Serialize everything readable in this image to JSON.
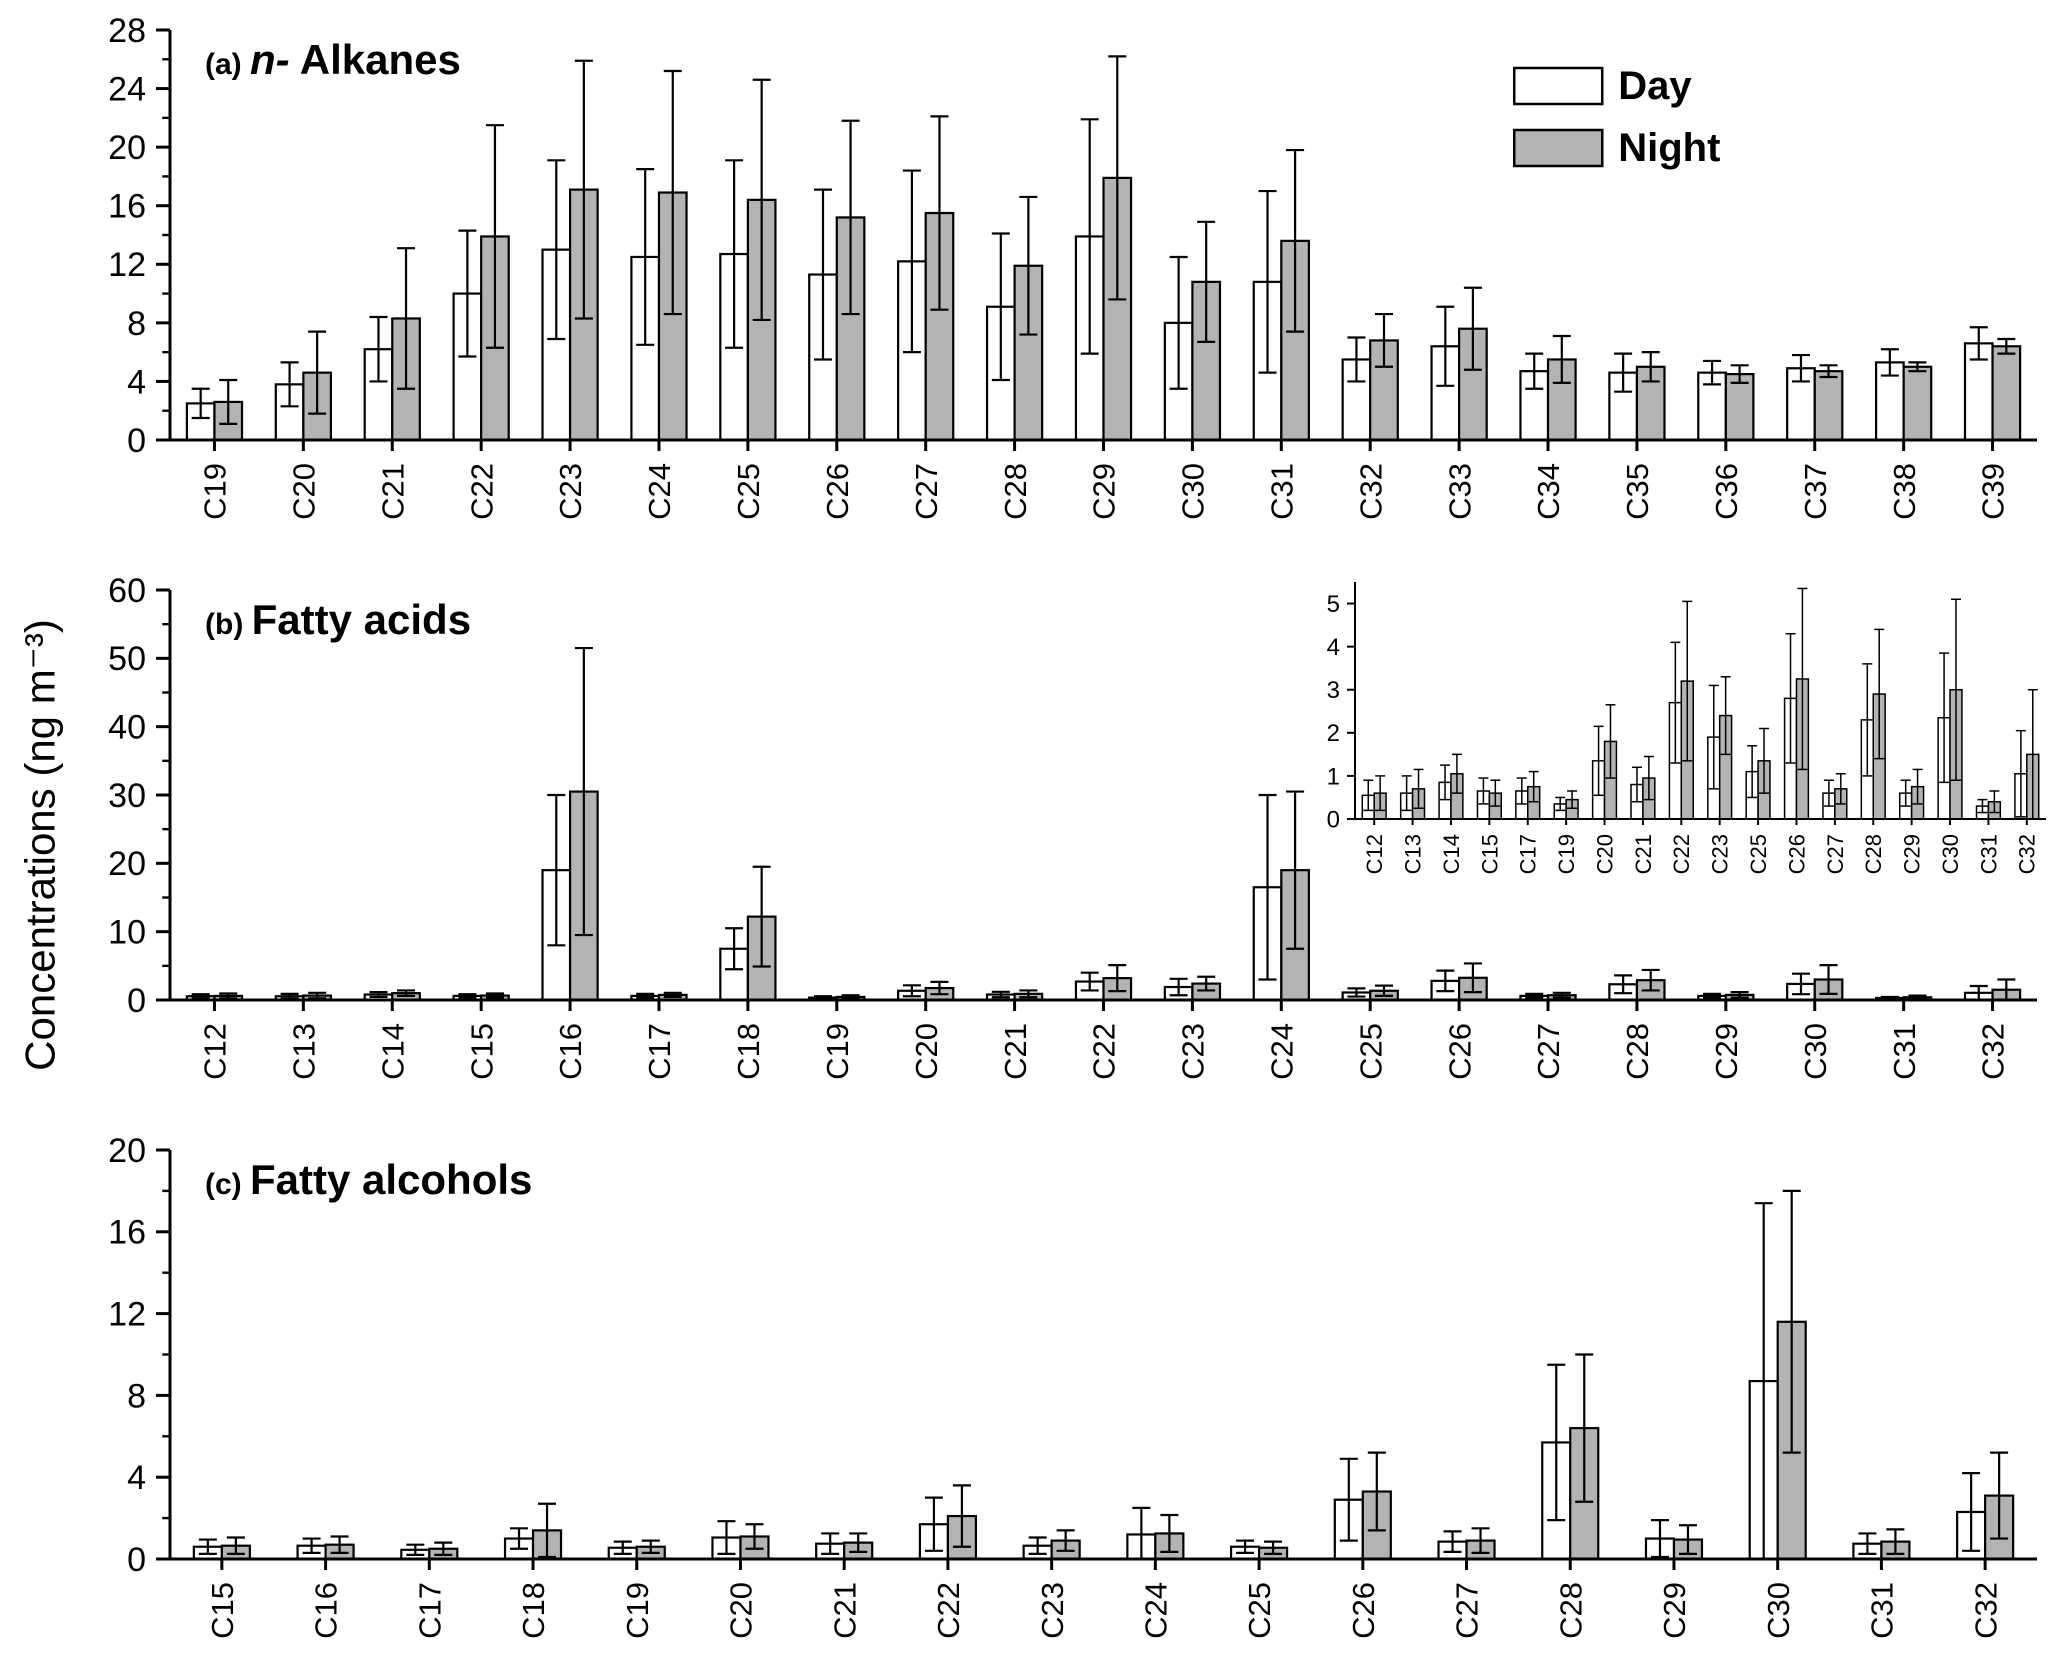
{
  "figure": {
    "y_axis_label": "Concentrations (ng m⁻³)",
    "legend": {
      "day": "Day",
      "night": "Night"
    },
    "colors": {
      "day_fill": "#ffffff",
      "night_fill": "#b3b3b3",
      "stroke": "#000000"
    }
  },
  "chart_data": [
    {
      "id": "alkanes",
      "type": "bar",
      "panel": "(a)",
      "title_italic": "n-",
      "title": " Alkanes",
      "xlabel": "",
      "ylabel": "Concentrations (ng m⁻³)",
      "ylim": [
        0,
        28
      ],
      "yticks": [
        0,
        4,
        8,
        12,
        16,
        20,
        24,
        28
      ],
      "legend": true,
      "legend_position": "upper right",
      "categories": [
        "C19",
        "C20",
        "C21",
        "C22",
        "C23",
        "C24",
        "C25",
        "C26",
        "C27",
        "C28",
        "C29",
        "C30",
        "C31",
        "C32",
        "C33",
        "C34",
        "C35",
        "C36",
        "C37",
        "C38",
        "C39"
      ],
      "series": [
        {
          "name": "Day",
          "values": [
            2.5,
            3.8,
            6.2,
            10.0,
            13.0,
            12.5,
            12.7,
            11.3,
            12.2,
            9.1,
            13.9,
            8.0,
            10.8,
            5.5,
            6.4,
            4.7,
            4.6,
            4.6,
            4.9,
            5.3,
            6.6
          ],
          "errors": [
            1.0,
            1.5,
            2.2,
            4.3,
            6.1,
            6.0,
            6.4,
            5.8,
            6.2,
            5.0,
            8.0,
            4.5,
            6.2,
            1.5,
            2.7,
            1.2,
            1.3,
            0.8,
            0.9,
            0.9,
            1.1
          ]
        },
        {
          "name": "Night",
          "values": [
            2.6,
            4.6,
            8.3,
            13.9,
            17.1,
            16.9,
            16.4,
            15.2,
            15.5,
            11.9,
            17.9,
            10.8,
            13.6,
            6.8,
            7.6,
            5.5,
            5.0,
            4.5,
            4.7,
            5.0,
            6.4
          ],
          "errors": [
            1.5,
            2.8,
            4.8,
            7.6,
            8.8,
            8.3,
            8.2,
            6.6,
            6.6,
            4.7,
            8.3,
            4.1,
            6.2,
            1.8,
            2.8,
            1.6,
            1.0,
            0.6,
            0.4,
            0.3,
            0.5
          ]
        }
      ]
    },
    {
      "id": "fatty-acids",
      "type": "bar",
      "panel": "(b)",
      "title_italic": "",
      "title": " Fatty acids",
      "xlabel": "",
      "ylabel": "Concentrations (ng m⁻³)",
      "ylim": [
        0,
        60
      ],
      "yticks": [
        0,
        10,
        20,
        30,
        40,
        50,
        60
      ],
      "legend": false,
      "categories": [
        "C12",
        "C13",
        "C14",
        "C15",
        "C16",
        "C17",
        "C18",
        "C19",
        "C20",
        "C21",
        "C22",
        "C23",
        "C24",
        "C25",
        "C26",
        "C27",
        "C28",
        "C29",
        "C30",
        "C31",
        "C32"
      ],
      "series": [
        {
          "name": "Day",
          "values": [
            0.55,
            0.55,
            0.8,
            0.6,
            19.0,
            0.6,
            7.5,
            0.35,
            1.35,
            0.8,
            2.7,
            1.9,
            16.5,
            1.1,
            2.8,
            0.6,
            2.3,
            0.6,
            2.35,
            0.3,
            1.05
          ],
          "errors": [
            0.3,
            0.35,
            0.35,
            0.25,
            11.0,
            0.3,
            3.0,
            0.2,
            0.8,
            0.4,
            1.3,
            1.2,
            13.5,
            0.6,
            1.5,
            0.3,
            1.3,
            0.3,
            1.5,
            0.15,
            1.0
          ]
        },
        {
          "name": "Night",
          "values": [
            0.6,
            0.65,
            1.0,
            0.65,
            30.5,
            0.75,
            12.2,
            0.45,
            1.75,
            0.9,
            3.2,
            2.4,
            19.0,
            1.35,
            3.25,
            0.7,
            2.9,
            0.75,
            3.0,
            0.4,
            1.5
          ],
          "errors": [
            0.35,
            0.4,
            0.4,
            0.3,
            21.0,
            0.3,
            7.3,
            0.25,
            0.9,
            0.5,
            1.9,
            1.0,
            11.5,
            0.75,
            2.1,
            0.35,
            1.5,
            0.4,
            2.1,
            0.25,
            1.5
          ]
        }
      ],
      "inset": {
        "id": "fatty-acids-inset",
        "type": "bar",
        "ylim": [
          0,
          5.5
        ],
        "yticks": [
          0,
          1,
          2,
          3,
          4,
          5
        ],
        "legend": false,
        "categories": [
          "C12",
          "C13",
          "C14",
          "C15",
          "C17",
          "C19",
          "C20",
          "C21",
          "C22",
          "C23",
          "C25",
          "C26",
          "C27",
          "C28",
          "C29",
          "C30",
          "C31",
          "C32"
        ],
        "series": [
          {
            "name": "Day",
            "values": [
              0.55,
              0.6,
              0.85,
              0.65,
              0.65,
              0.35,
              1.35,
              0.8,
              2.7,
              1.9,
              1.1,
              2.8,
              0.6,
              2.3,
              0.6,
              2.35,
              0.3,
              1.05
            ],
            "errors": [
              0.35,
              0.4,
              0.4,
              0.3,
              0.3,
              0.15,
              0.8,
              0.4,
              1.4,
              1.2,
              0.6,
              1.5,
              0.3,
              1.3,
              0.3,
              1.5,
              0.15,
              1.0
            ]
          },
          {
            "name": "Night",
            "values": [
              0.6,
              0.7,
              1.05,
              0.6,
              0.75,
              0.45,
              1.8,
              0.95,
              3.2,
              2.4,
              1.35,
              3.25,
              0.7,
              2.9,
              0.75,
              3.0,
              0.4,
              1.5
            ],
            "errors": [
              0.4,
              0.45,
              0.45,
              0.3,
              0.35,
              0.2,
              0.85,
              0.5,
              1.85,
              0.9,
              0.75,
              2.1,
              0.35,
              1.5,
              0.4,
              2.1,
              0.25,
              1.5
            ]
          }
        ]
      }
    },
    {
      "id": "fatty-alcohols",
      "type": "bar",
      "panel": "(c)",
      "title_italic": "",
      "title": " Fatty alcohols",
      "xlabel": "",
      "ylabel": "Concentrations (ng m⁻³)",
      "ylim": [
        0,
        20
      ],
      "yticks": [
        0,
        4,
        8,
        12,
        16,
        20
      ],
      "legend": false,
      "categories": [
        "C15",
        "C16",
        "C17",
        "C18",
        "C19",
        "C20",
        "C21",
        "C22",
        "C23",
        "C24",
        "C25",
        "C26",
        "C27",
        "C28",
        "C29",
        "C30",
        "C31",
        "C32"
      ],
      "series": [
        {
          "name": "Day",
          "values": [
            0.6,
            0.65,
            0.45,
            1.0,
            0.55,
            1.05,
            0.75,
            1.7,
            0.65,
            1.2,
            0.6,
            2.9,
            0.85,
            5.7,
            1.0,
            8.7,
            0.75,
            2.3
          ],
          "errors": [
            0.35,
            0.35,
            0.25,
            0.5,
            0.3,
            0.8,
            0.5,
            1.3,
            0.4,
            1.3,
            0.3,
            2.0,
            0.5,
            3.8,
            0.9,
            8.7,
            0.5,
            1.9
          ]
        },
        {
          "name": "Night",
          "values": [
            0.65,
            0.7,
            0.5,
            1.4,
            0.6,
            1.1,
            0.8,
            2.1,
            0.9,
            1.25,
            0.55,
            3.3,
            0.9,
            6.4,
            0.95,
            11.6,
            0.85,
            3.1
          ],
          "errors": [
            0.4,
            0.4,
            0.3,
            1.3,
            0.3,
            0.6,
            0.45,
            1.5,
            0.5,
            0.9,
            0.3,
            1.9,
            0.6,
            3.6,
            0.7,
            6.4,
            0.6,
            2.1
          ]
        }
      ]
    }
  ]
}
